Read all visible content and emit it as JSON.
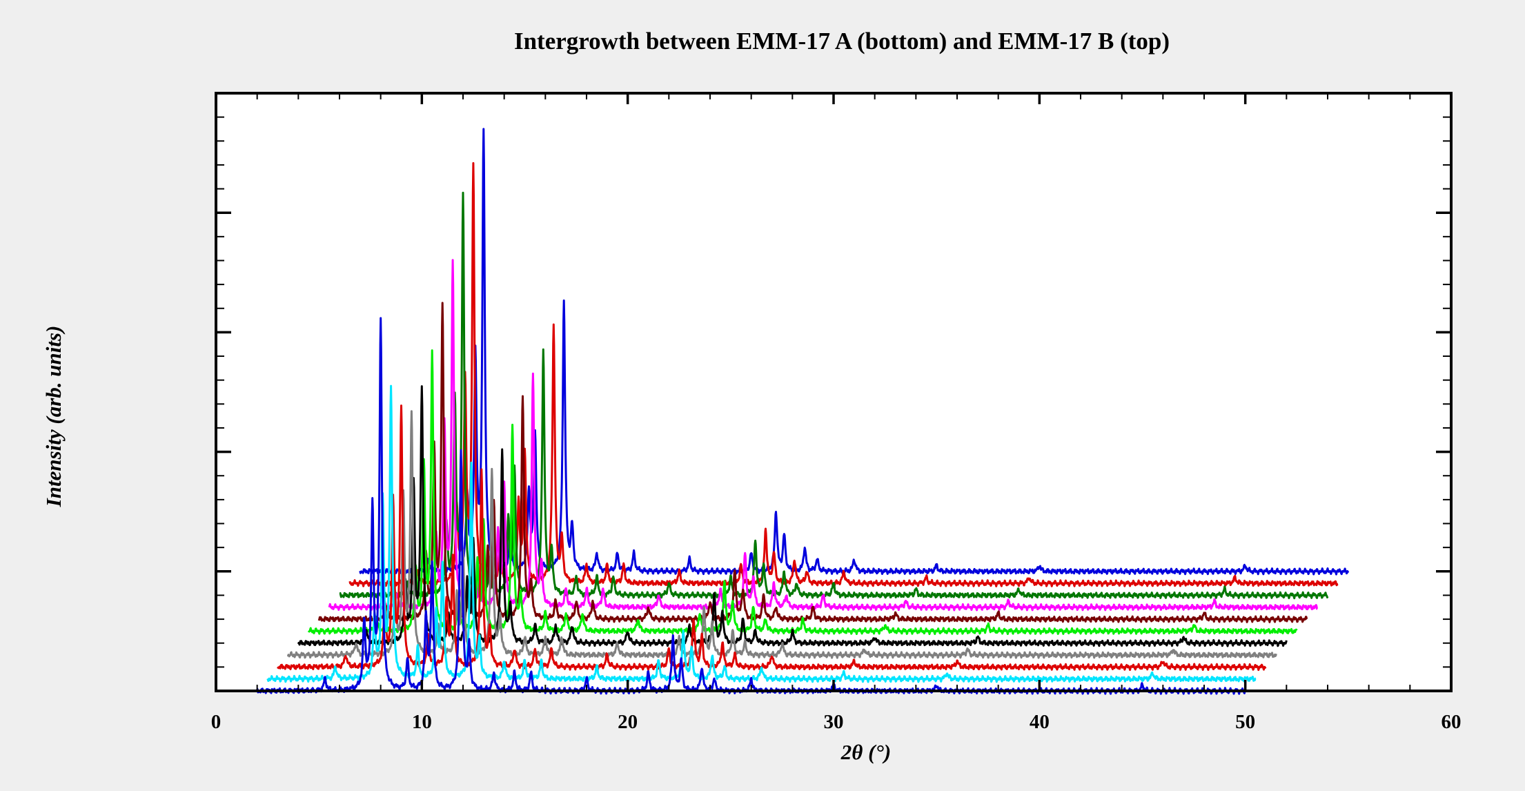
{
  "chart_data": {
    "type": "line",
    "title": "Intergrowth between EMM-17 A (bottom) and EMM-17 B (top)",
    "xlabel": "2θ (°)",
    "ylabel": "Intensity (arb. units)",
    "xlim": [
      0,
      60
    ],
    "x_ticks": [
      "0",
      "10",
      "20",
      "30",
      "40",
      "50",
      "60"
    ],
    "ylim": [
      0,
      100
    ],
    "y_ticks_labeled": false,
    "grid": false,
    "legend": "none",
    "stacking": "waterfall, each trace offset up and to the right",
    "x_offset_per_trace": 0.5,
    "y_offset_per_trace": 2,
    "traces": [
      {
        "color": "#0000dd",
        "x_range": [
          2.0,
          50.0
        ],
        "peaks": [
          [
            5.3,
            2
          ],
          [
            7.2,
            11
          ],
          [
            7.6,
            30
          ],
          [
            8.0,
            61
          ],
          [
            9.3,
            5
          ],
          [
            10.2,
            12
          ],
          [
            10.5,
            21
          ],
          [
            11.9,
            40
          ],
          [
            12.3,
            7
          ],
          [
            13.5,
            3
          ],
          [
            14.5,
            3
          ],
          [
            15.3,
            3
          ],
          [
            18.0,
            2
          ],
          [
            21.0,
            3
          ],
          [
            22.2,
            9
          ],
          [
            22.6,
            5
          ],
          [
            23.6,
            4
          ],
          [
            24.2,
            2
          ],
          [
            26.0,
            2
          ],
          [
            30.0,
            1
          ],
          [
            35.0,
            1
          ],
          [
            45.0,
            1
          ]
        ]
      },
      {
        "color": "#00e5ff",
        "x_range": [
          2.5,
          50.5
        ],
        "peaks": [
          [
            5.8,
            2
          ],
          [
            7.7,
            10
          ],
          [
            8.1,
            29
          ],
          [
            8.5,
            48
          ],
          [
            9.8,
            5
          ],
          [
            10.7,
            11
          ],
          [
            11.0,
            19
          ],
          [
            12.4,
            36
          ],
          [
            12.8,
            6
          ],
          [
            14.0,
            3
          ],
          [
            15.0,
            3
          ],
          [
            15.8,
            3
          ],
          [
            18.5,
            2
          ],
          [
            21.5,
            3
          ],
          [
            22.7,
            8
          ],
          [
            23.1,
            5
          ],
          [
            24.1,
            4
          ],
          [
            24.7,
            2
          ],
          [
            26.5,
            2
          ],
          [
            30.5,
            1
          ],
          [
            35.5,
            1
          ],
          [
            45.5,
            1
          ]
        ]
      },
      {
        "color": "#dd0000",
        "x_range": [
          3.0,
          51.0
        ],
        "peaks": [
          [
            6.3,
            2
          ],
          [
            8.2,
            10
          ],
          [
            8.6,
            27
          ],
          [
            9.0,
            43
          ],
          [
            10.3,
            5
          ],
          [
            11.2,
            11
          ],
          [
            11.5,
            18
          ],
          [
            12.9,
            33
          ],
          [
            13.3,
            6
          ],
          [
            14.5,
            3
          ],
          [
            15.5,
            3
          ],
          [
            16.3,
            3
          ],
          [
            19.0,
            2
          ],
          [
            22.0,
            3
          ],
          [
            23.2,
            8
          ],
          [
            23.6,
            5
          ],
          [
            24.6,
            4
          ],
          [
            25.2,
            2
          ],
          [
            27.0,
            2
          ],
          [
            31.0,
            1
          ],
          [
            36.0,
            1
          ],
          [
            46.0,
            1
          ]
        ]
      },
      {
        "color": "#808080",
        "x_range": [
          3.5,
          51.5
        ],
        "peaks": [
          [
            6.8,
            2
          ],
          [
            8.7,
            10
          ],
          [
            9.1,
            26
          ],
          [
            9.5,
            40
          ],
          [
            10.8,
            5
          ],
          [
            11.7,
            10
          ],
          [
            12.0,
            17
          ],
          [
            13.4,
            31
          ],
          [
            13.8,
            6
          ],
          [
            15.0,
            3
          ],
          [
            16.0,
            3
          ],
          [
            16.8,
            3
          ],
          [
            19.5,
            2
          ],
          [
            22.5,
            3
          ],
          [
            23.7,
            8
          ],
          [
            24.1,
            5
          ],
          [
            25.1,
            4
          ],
          [
            25.7,
            2
          ],
          [
            27.5,
            2
          ],
          [
            31.5,
            1
          ],
          [
            36.5,
            1
          ],
          [
            46.5,
            1
          ]
        ]
      },
      {
        "color": "#000000",
        "x_range": [
          4.0,
          52.0
        ],
        "peaks": [
          [
            7.3,
            2
          ],
          [
            9.2,
            10
          ],
          [
            9.6,
            26
          ],
          [
            10.0,
            42
          ],
          [
            11.3,
            5
          ],
          [
            12.2,
            10
          ],
          [
            12.5,
            17
          ],
          [
            13.9,
            32
          ],
          [
            14.3,
            6
          ],
          [
            15.5,
            3
          ],
          [
            16.5,
            3
          ],
          [
            17.3,
            3
          ],
          [
            20.0,
            2
          ],
          [
            23.0,
            3
          ],
          [
            24.2,
            8
          ],
          [
            24.6,
            5
          ],
          [
            25.6,
            4
          ],
          [
            26.2,
            2
          ],
          [
            28.0,
            2
          ],
          [
            32.0,
            1
          ],
          [
            37.0,
            1
          ],
          [
            47.0,
            1
          ]
        ]
      },
      {
        "color": "#00ee00",
        "x_range": [
          4.5,
          52.5
        ],
        "peaks": [
          [
            7.8,
            2
          ],
          [
            9.7,
            10
          ],
          [
            10.1,
            27
          ],
          [
            10.5,
            46
          ],
          [
            11.8,
            5
          ],
          [
            12.7,
            11
          ],
          [
            13.0,
            18
          ],
          [
            14.4,
            34
          ],
          [
            14.8,
            6
          ],
          [
            16.0,
            3
          ],
          [
            17.0,
            3
          ],
          [
            17.8,
            3
          ],
          [
            20.5,
            2
          ],
          [
            23.5,
            3
          ],
          [
            24.7,
            8
          ],
          [
            25.1,
            5
          ],
          [
            26.1,
            4
          ],
          [
            26.7,
            2
          ],
          [
            28.5,
            2
          ],
          [
            32.5,
            1
          ],
          [
            37.5,
            1
          ],
          [
            47.5,
            1
          ]
        ]
      },
      {
        "color": "#770000",
        "x_range": [
          5.0,
          53.0
        ],
        "peaks": [
          [
            8.3,
            2
          ],
          [
            10.2,
            10
          ],
          [
            10.6,
            28
          ],
          [
            11.0,
            52
          ],
          [
            12.3,
            5
          ],
          [
            13.2,
            11
          ],
          [
            13.5,
            19
          ],
          [
            14.9,
            37
          ],
          [
            15.3,
            6
          ],
          [
            16.5,
            3
          ],
          [
            17.5,
            3
          ],
          [
            18.3,
            3
          ],
          [
            21.0,
            2
          ],
          [
            24.0,
            3
          ],
          [
            25.2,
            8
          ],
          [
            25.6,
            5
          ],
          [
            26.6,
            4
          ],
          [
            27.2,
            2
          ],
          [
            29.0,
            2
          ],
          [
            33.0,
            1
          ],
          [
            38.0,
            1
          ],
          [
            48.0,
            1
          ]
        ]
      },
      {
        "color": "#ff00ff",
        "x_range": [
          5.5,
          53.5
        ],
        "peaks": [
          [
            8.8,
            2
          ],
          [
            10.7,
            11
          ],
          [
            11.1,
            30
          ],
          [
            11.5,
            57
          ],
          [
            12.8,
            5
          ],
          [
            13.7,
            12
          ],
          [
            14.0,
            20
          ],
          [
            15.4,
            39
          ],
          [
            15.8,
            7
          ],
          [
            17.0,
            3
          ],
          [
            18.0,
            3
          ],
          [
            18.8,
            3
          ],
          [
            21.5,
            2
          ],
          [
            24.5,
            3
          ],
          [
            25.7,
            9
          ],
          [
            26.1,
            5
          ],
          [
            27.1,
            4
          ],
          [
            27.7,
            2
          ],
          [
            29.5,
            2
          ],
          [
            33.5,
            1
          ],
          [
            38.5,
            1
          ],
          [
            48.5,
            1
          ]
        ]
      },
      {
        "color": "#007700",
        "x_range": [
          6.0,
          54.0
        ],
        "peaks": [
          [
            9.3,
            2
          ],
          [
            11.2,
            11
          ],
          [
            11.6,
            32
          ],
          [
            12.0,
            66
          ],
          [
            13.3,
            6
          ],
          [
            14.2,
            12
          ],
          [
            14.5,
            21
          ],
          [
            15.9,
            41
          ],
          [
            16.3,
            7
          ],
          [
            17.5,
            3
          ],
          [
            18.5,
            3
          ],
          [
            19.3,
            3
          ],
          [
            22.0,
            2
          ],
          [
            25.0,
            3
          ],
          [
            26.2,
            9
          ],
          [
            26.6,
            5
          ],
          [
            27.6,
            4
          ],
          [
            28.2,
            2
          ],
          [
            30.0,
            2
          ],
          [
            34.0,
            1
          ],
          [
            39.0,
            1
          ],
          [
            49.0,
            1
          ]
        ]
      },
      {
        "color": "#dd0000",
        "x_range": [
          6.5,
          54.5
        ],
        "peaks": [
          [
            9.8,
            2
          ],
          [
            11.7,
            12
          ],
          [
            12.1,
            33
          ],
          [
            12.5,
            69
          ],
          [
            13.8,
            6
          ],
          [
            14.7,
            13
          ],
          [
            15.0,
            22
          ],
          [
            16.4,
            43
          ],
          [
            16.8,
            7
          ],
          [
            18.0,
            3
          ],
          [
            19.0,
            3
          ],
          [
            19.8,
            3
          ],
          [
            22.5,
            2
          ],
          [
            25.5,
            3
          ],
          [
            26.7,
            9
          ],
          [
            27.1,
            5
          ],
          [
            28.1,
            4
          ],
          [
            28.7,
            2
          ],
          [
            30.5,
            2
          ],
          [
            34.5,
            1
          ],
          [
            39.5,
            1
          ],
          [
            49.5,
            1
          ]
        ]
      },
      {
        "color": "#0000dd",
        "x_range": [
          7.0,
          55.0
        ],
        "peaks": [
          [
            10.3,
            2
          ],
          [
            12.2,
            12
          ],
          [
            12.6,
            35
          ],
          [
            13.0,
            73
          ],
          [
            14.3,
            6
          ],
          [
            15.2,
            13
          ],
          [
            15.5,
            23
          ],
          [
            16.9,
            45
          ],
          [
            17.3,
            7
          ],
          [
            18.5,
            3
          ],
          [
            19.5,
            3
          ],
          [
            20.3,
            3
          ],
          [
            23.0,
            2
          ],
          [
            26.0,
            3
          ],
          [
            27.2,
            10
          ],
          [
            27.6,
            6
          ],
          [
            28.6,
            4
          ],
          [
            29.2,
            2
          ],
          [
            31.0,
            2
          ],
          [
            35.0,
            1
          ],
          [
            40.0,
            1
          ],
          [
            50.0,
            1
          ]
        ]
      }
    ]
  }
}
